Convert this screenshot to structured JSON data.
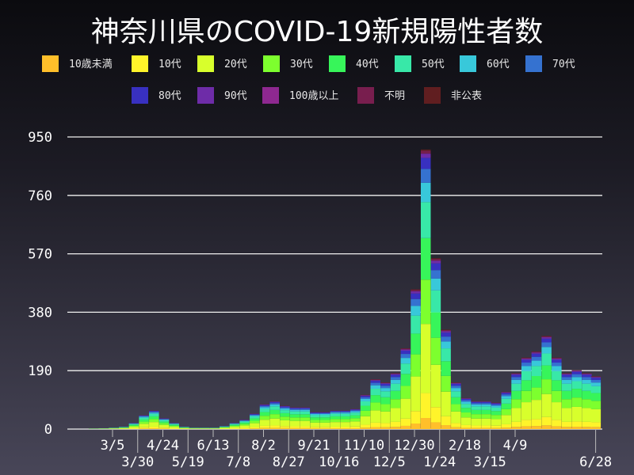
{
  "chart_data": {
    "type": "bar",
    "stacked": true,
    "title": "神奈川県のCOVID-19新規陽性者数",
    "xlabel": "",
    "ylabel": "",
    "ylim": [
      0,
      950
    ],
    "yticks": [
      0,
      190,
      380,
      570,
      760,
      950
    ],
    "grid": true,
    "legend_position": "top",
    "xticks": [
      {
        "label": "3/5",
        "date": "2020-03-05"
      },
      {
        "label": "3/30",
        "date": "2020-03-30"
      },
      {
        "label": "4/24",
        "date": "2020-04-24"
      },
      {
        "label": "5/19",
        "date": "2020-05-19"
      },
      {
        "label": "6/13",
        "date": "2020-06-13"
      },
      {
        "label": "7/8",
        "date": "2020-07-08"
      },
      {
        "label": "8/2",
        "date": "2020-08-02"
      },
      {
        "label": "8/27",
        "date": "2020-08-27"
      },
      {
        "label": "9/21",
        "date": "2020-09-21"
      },
      {
        "label": "10/16",
        "date": "2020-10-16"
      },
      {
        "label": "11/10",
        "date": "2020-11-10"
      },
      {
        "label": "12/5",
        "date": "2020-12-05"
      },
      {
        "label": "12/30",
        "date": "2020-12-30"
      },
      {
        "label": "1/24",
        "date": "2021-01-24"
      },
      {
        "label": "2/18",
        "date": "2021-02-18"
      },
      {
        "label": "3/15",
        "date": "2021-03-15"
      },
      {
        "label": "4/9",
        "date": "2021-04-09"
      },
      {
        "label": "6/28",
        "date": "2021-06-28"
      }
    ],
    "x": [
      "2020-02-15",
      "2020-02-25",
      "2020-03-06",
      "2020-03-16",
      "2020-03-26",
      "2020-04-05",
      "2020-04-15",
      "2020-04-25",
      "2020-05-05",
      "2020-05-15",
      "2020-05-25",
      "2020-06-04",
      "2020-06-14",
      "2020-06-24",
      "2020-07-04",
      "2020-07-14",
      "2020-07-24",
      "2020-08-03",
      "2020-08-13",
      "2020-08-23",
      "2020-09-02",
      "2020-09-12",
      "2020-09-22",
      "2020-10-02",
      "2020-10-12",
      "2020-10-22",
      "2020-11-01",
      "2020-11-11",
      "2020-11-21",
      "2020-12-01",
      "2020-12-11",
      "2020-12-21",
      "2020-12-31",
      "2021-01-10",
      "2021-01-20",
      "2021-01-30",
      "2021-02-09",
      "2021-02-19",
      "2021-03-01",
      "2021-03-11",
      "2021-03-21",
      "2021-03-31",
      "2021-04-10",
      "2021-04-20",
      "2021-04-30",
      "2021-05-10",
      "2021-05-20",
      "2021-05-30",
      "2021-06-09",
      "2021-06-19",
      "2021-06-28"
    ],
    "total": [
      2,
      3,
      5,
      8,
      20,
      45,
      60,
      35,
      20,
      8,
      5,
      5,
      5,
      10,
      20,
      30,
      50,
      80,
      90,
      75,
      70,
      70,
      55,
      55,
      60,
      60,
      65,
      110,
      160,
      150,
      180,
      260,
      450,
      900,
      550,
      320,
      150,
      100,
      90,
      90,
      85,
      120,
      180,
      230,
      250,
      300,
      230,
      180,
      190,
      180,
      170
    ],
    "series": [
      {
        "name": "10歳未満",
        "color": "#ffbf2a",
        "share": 0.04
      },
      {
        "name": "10代",
        "color": "#fff42a",
        "share": 0.09
      },
      {
        "name": "20代",
        "color": "#d8ff2c",
        "share": 0.25
      },
      {
        "name": "30代",
        "color": "#7dff2e",
        "share": 0.16
      },
      {
        "name": "40代",
        "color": "#37f55a",
        "share": 0.15
      },
      {
        "name": "50代",
        "color": "#38e8a8",
        "share": 0.13
      },
      {
        "name": "60代",
        "color": "#38c8da",
        "share": 0.07
      },
      {
        "name": "70代",
        "color": "#3572d0",
        "share": 0.05
      },
      {
        "name": "80代",
        "color": "#3830c0",
        "share": 0.04
      },
      {
        "name": "90代",
        "color": "#6e2ca8",
        "share": 0.015
      },
      {
        "name": "100歳以上",
        "color": "#8e2890",
        "share": 0.001
      },
      {
        "name": "不明",
        "color": "#781e4e",
        "share": 0.01
      },
      {
        "name": "非公表",
        "color": "#601e20",
        "share": 0.004
      }
    ]
  }
}
